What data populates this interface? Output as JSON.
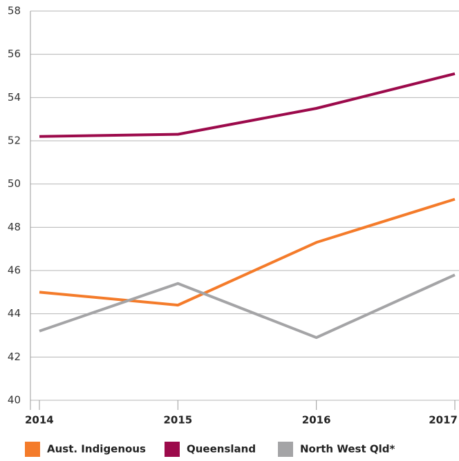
{
  "chart_data": {
    "type": "line",
    "categories": [
      "2014",
      "2015",
      "2016",
      "2017"
    ],
    "series": [
      {
        "name": "Aust. Indigenous",
        "color": "#f47b2a",
        "values": [
          45.0,
          44.4,
          47.3,
          49.3
        ]
      },
      {
        "name": "Queensland",
        "color": "#9c0a4b",
        "values": [
          52.2,
          52.3,
          53.5,
          55.1
        ]
      },
      {
        "name": "North West Qld*",
        "color": "#a4a4a6",
        "values": [
          43.2,
          45.4,
          42.9,
          45.8
        ]
      }
    ],
    "ylim": [
      40,
      58
    ],
    "yticks": [
      40,
      42,
      44,
      46,
      48,
      50,
      52,
      54,
      56,
      58
    ],
    "grid": true
  }
}
